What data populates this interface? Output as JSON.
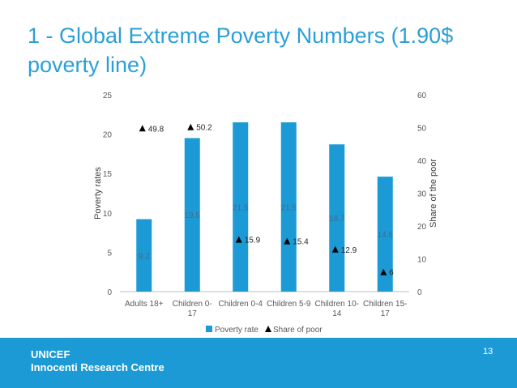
{
  "slide": {
    "title_line1": "1 - Global Extreme Poverty Numbers (1.90$",
    "title_line2": "poverty line)",
    "org_line1": "UNICEF",
    "org_line2": "Innocenti Research Centre",
    "page_number": "13"
  },
  "colors": {
    "accent": "#2a9fd8",
    "bar": "#1c9ad6",
    "footer": "#1c9ad6",
    "text": "#595959"
  },
  "chart_data": {
    "type": "bar",
    "categories": [
      [
        "Adults 18+"
      ],
      [
        "Children 0-",
        "17"
      ],
      [
        "Children 0-4"
      ],
      [
        "Children 5-9"
      ],
      [
        "Children 10-",
        "14"
      ],
      [
        "Children 15-",
        "17"
      ]
    ],
    "series": [
      {
        "name": "Poverty rate",
        "axis": "left",
        "kind": "bar",
        "values": [
          9.2,
          19.5,
          21.5,
          21.5,
          18.7,
          14.6
        ]
      },
      {
        "name": "Share of poor",
        "axis": "right",
        "kind": "marker",
        "values": [
          49.8,
          50.2,
          15.9,
          15.4,
          12.9,
          6
        ]
      }
    ],
    "data_labels": {
      "Poverty rate": [
        "9.2",
        "19.5",
        "21.5",
        "21.5",
        "18.7",
        "14.6"
      ],
      "Share of poor": [
        "49.8",
        "50.2",
        "15.9",
        "15.4",
        "12.9",
        "6"
      ]
    },
    "ylabel": "Poverty rates",
    "y2label": "Share of the poor",
    "ylim": [
      0,
      25
    ],
    "y2lim": [
      0,
      60
    ],
    "yticks": [
      "0",
      "5",
      "10",
      "15",
      "20",
      "25"
    ],
    "y2ticks": [
      "0",
      "10",
      "20",
      "30",
      "40",
      "50",
      "60"
    ],
    "grid": false,
    "legend": [
      "Poverty rate",
      "Share of poor"
    ],
    "legend_position": "bottom"
  }
}
